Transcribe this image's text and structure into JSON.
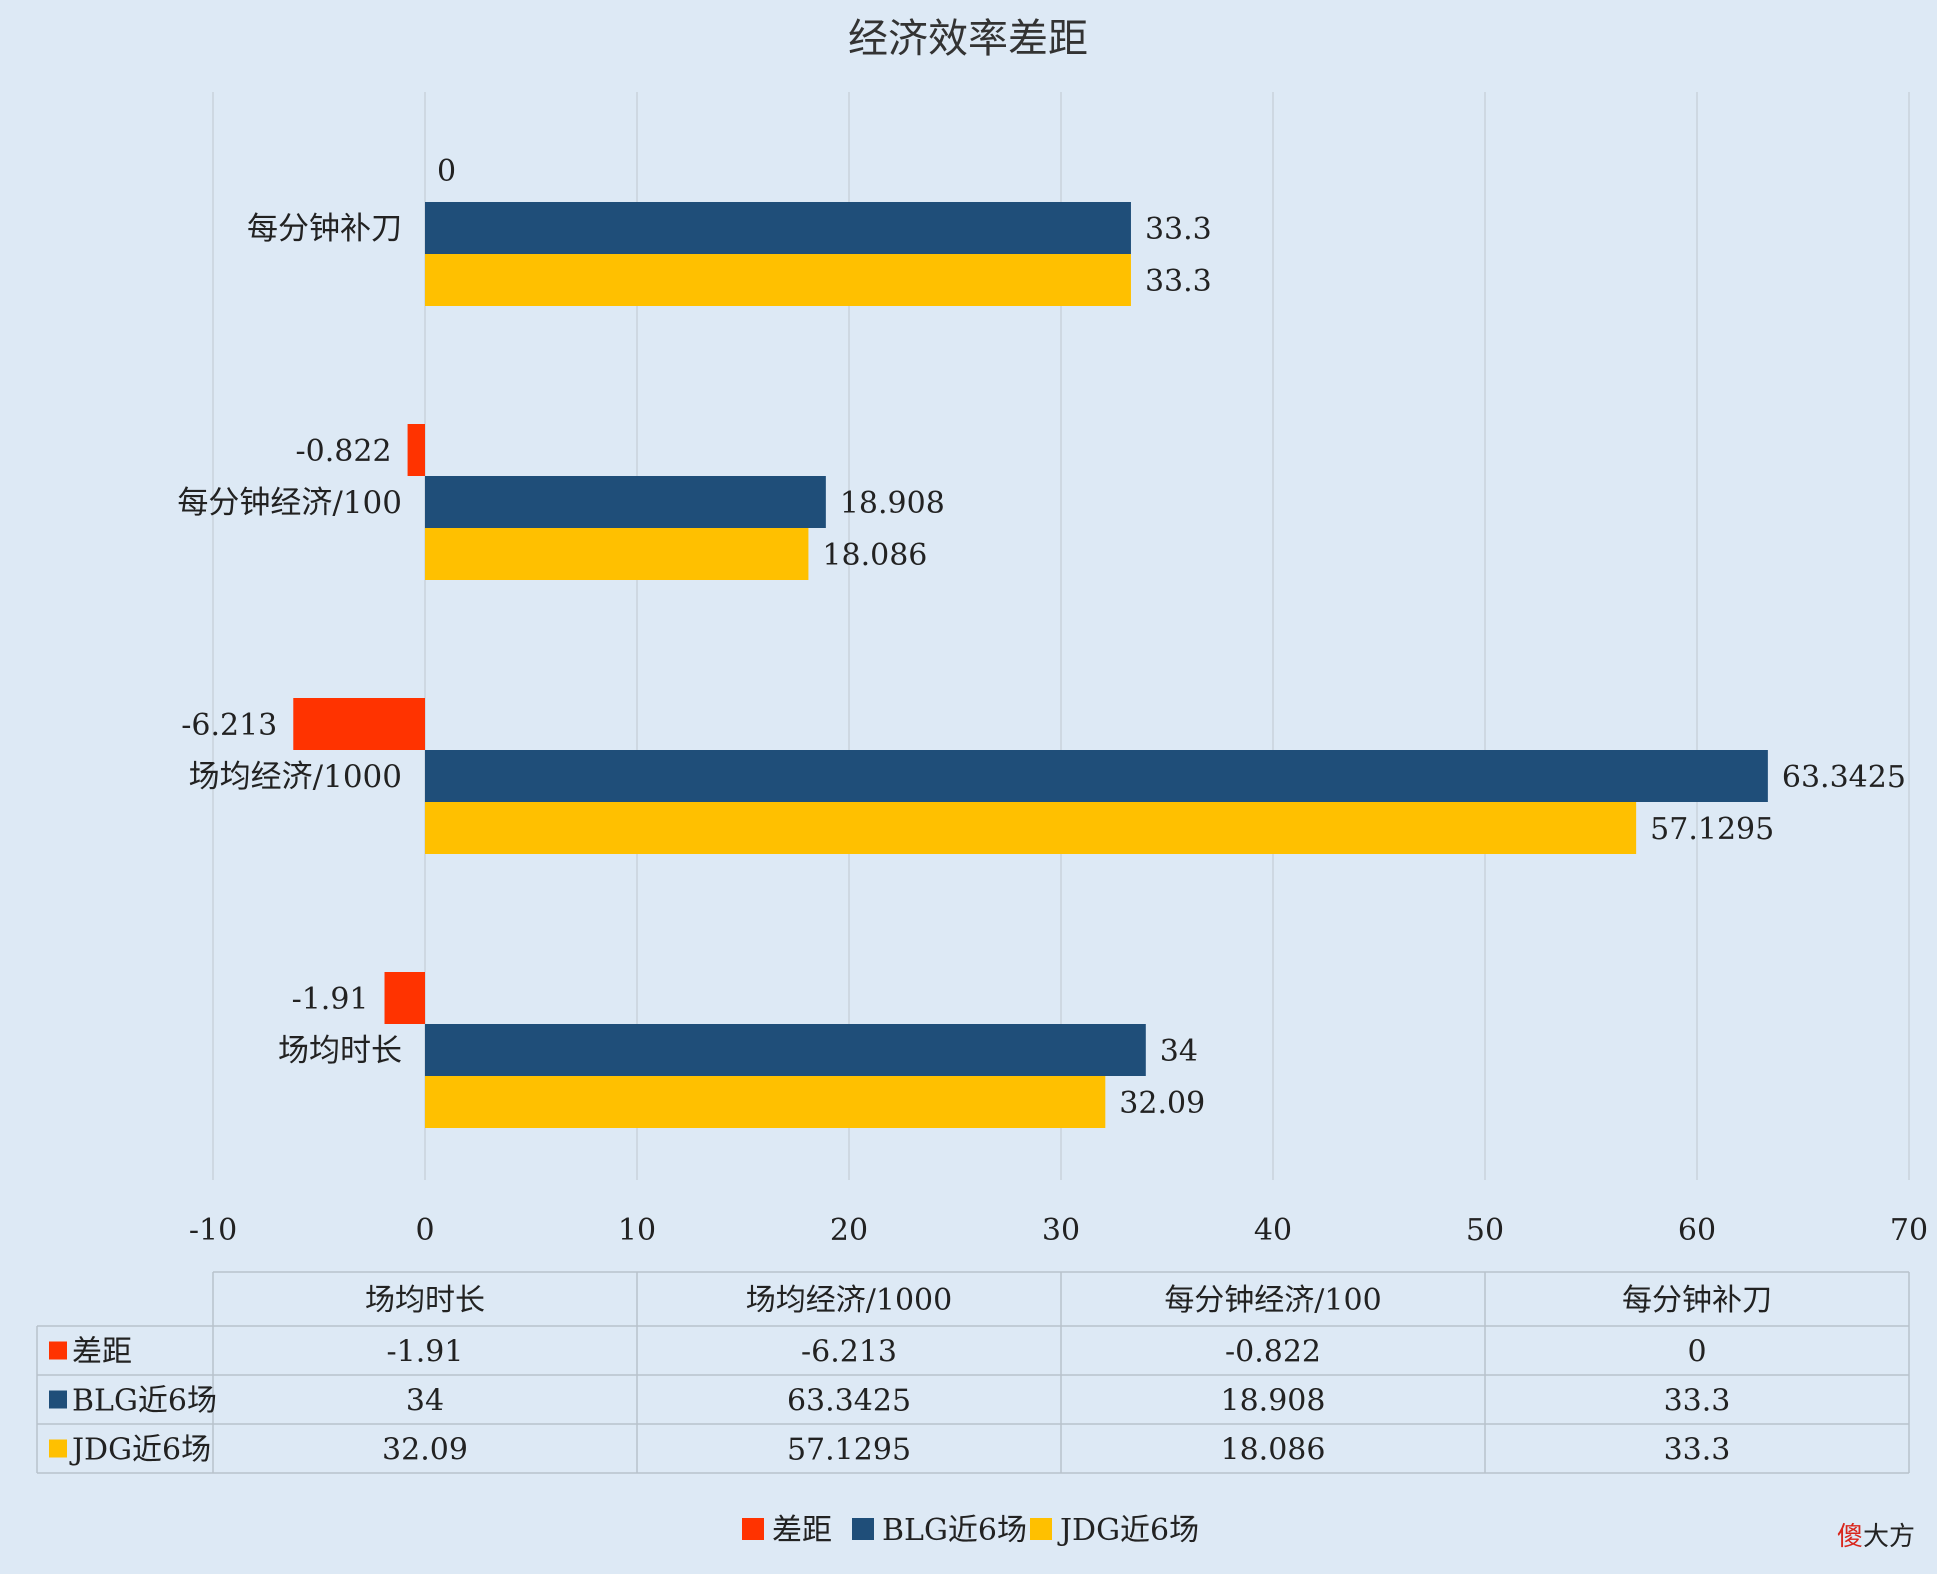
{
  "chart_data": {
    "type": "bar",
    "orientation": "horizontal",
    "title": "经济效率差距",
    "categories": [
      "场均时长",
      "场均经济/1000",
      "每分钟经济/100",
      "每分钟补刀"
    ],
    "series": [
      {
        "name": "差距",
        "color": "#ff3300",
        "values": [
          -1.91,
          -6.213,
          -0.822,
          0
        ]
      },
      {
        "name": "BLG近6场",
        "color": "#1f4e79",
        "values": [
          34,
          63.3425,
          18.908,
          33.3
        ]
      },
      {
        "name": "JDG近6场",
        "color": "#ffc000",
        "values": [
          32.09,
          57.1295,
          18.086,
          33.3
        ]
      }
    ],
    "value_labels": [
      [
        "-1.91",
        "-6.213",
        "-0.822",
        "0"
      ],
      [
        "34",
        "63.3425",
        "18.908",
        "33.3"
      ],
      [
        "32.09",
        "57.1295",
        "18.086",
        "33.3"
      ]
    ],
    "xlim": [
      -10,
      70
    ],
    "x_ticks": [
      -10,
      0,
      10,
      20,
      30,
      40,
      50,
      60,
      70
    ],
    "grid": true,
    "data_table": true,
    "legend_position": "bottom"
  },
  "watermark": {
    "char1": "傻",
    "char2": "大方",
    "color1": "#d9261c",
    "color2": "#222222"
  }
}
